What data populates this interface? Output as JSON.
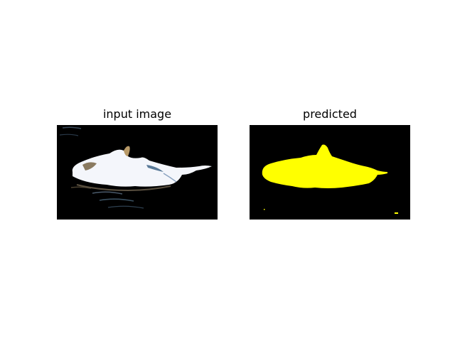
{
  "figure": {
    "panels": [
      {
        "title": "input image"
      },
      {
        "title": "predicted"
      }
    ]
  },
  "colors": {
    "background": "#ffffff",
    "image_bg": "#000000",
    "mask_fill": "#ffff00",
    "bird_white": "#f4f6fb"
  }
}
